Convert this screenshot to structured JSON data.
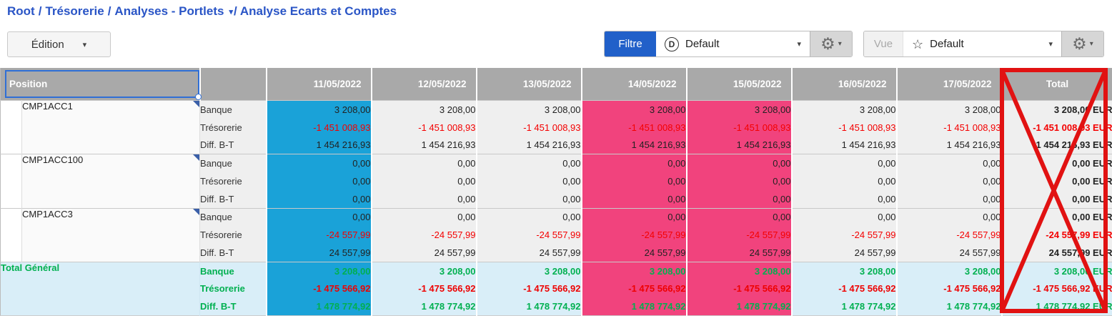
{
  "breadcrumb": {
    "separator": "/",
    "items": [
      "Root",
      "Trésorerie",
      "Analyses - Portlets",
      "Analyse Ecarts et Comptes"
    ]
  },
  "icons": {
    "caret_down": "▾",
    "gear": "⚙",
    "star_outline": "☆",
    "filter_badge_letter": "D"
  },
  "toolbar": {
    "edition_label": "Édition",
    "filtre_label": "Filtre",
    "filter_preset": "Default",
    "vue_label": "Vue",
    "view_preset": "Default"
  },
  "table": {
    "position_header": "Position",
    "date_columns": [
      "11/05/2022",
      "12/05/2022",
      "13/05/2022",
      "14/05/2022",
      "15/05/2022",
      "16/05/2022",
      "17/05/2022"
    ],
    "total_header": "Total",
    "row_labels": [
      "Banque",
      "Trésorerie",
      "Diff. B-T"
    ],
    "groups": [
      {
        "name": "CMP1ACC1",
        "rows": [
          {
            "label": "Banque",
            "values": [
              "3 208,00",
              "3 208,00",
              "3 208,00",
              "3 208,00",
              "3 208,00",
              "3 208,00",
              "3 208,00"
            ],
            "total": "3 208,00 EUR"
          },
          {
            "label": "Trésorerie",
            "values": [
              "-1 451 008,93",
              "-1 451 008,93",
              "-1 451 008,93",
              "-1 451 008,93",
              "-1 451 008,93",
              "-1 451 008,93",
              "-1 451 008,93"
            ],
            "total": "-1 451 008,93 EUR"
          },
          {
            "label": "Diff. B-T",
            "values": [
              "1 454 216,93",
              "1 454 216,93",
              "1 454 216,93",
              "1 454 216,93",
              "1 454 216,93",
              "1 454 216,93",
              "1 454 216,93"
            ],
            "total": "1 454 216,93 EUR"
          }
        ]
      },
      {
        "name": "CMP1ACC100",
        "rows": [
          {
            "label": "Banque",
            "values": [
              "0,00",
              "0,00",
              "0,00",
              "0,00",
              "0,00",
              "0,00",
              "0,00"
            ],
            "total": "0,00 EUR"
          },
          {
            "label": "Trésorerie",
            "values": [
              "0,00",
              "0,00",
              "0,00",
              "0,00",
              "0,00",
              "0,00",
              "0,00"
            ],
            "total": "0,00 EUR"
          },
          {
            "label": "Diff. B-T",
            "values": [
              "0,00",
              "0,00",
              "0,00",
              "0,00",
              "0,00",
              "0,00",
              "0,00"
            ],
            "total": "0,00 EUR"
          }
        ]
      },
      {
        "name": "CMP1ACC3",
        "rows": [
          {
            "label": "Banque",
            "values": [
              "0,00",
              "0,00",
              "0,00",
              "0,00",
              "0,00",
              "0,00",
              "0,00"
            ],
            "total": "0,00 EUR"
          },
          {
            "label": "Trésorerie",
            "values": [
              "-24 557,99",
              "-24 557,99",
              "-24 557,99",
              "-24 557,99",
              "-24 557,99",
              "-24 557,99",
              "-24 557,99"
            ],
            "total": "-24 557,99 EUR"
          },
          {
            "label": "Diff. B-T",
            "values": [
              "24 557,99",
              "24 557,99",
              "24 557,99",
              "24 557,99",
              "24 557,99",
              "24 557,99",
              "24 557,99"
            ],
            "total": "24 557,99 EUR"
          }
        ]
      }
    ],
    "grand_total": {
      "name": "Total Général",
      "rows": [
        {
          "label": "Banque",
          "values": [
            "3 208,00",
            "3 208,00",
            "3 208,00",
            "3 208,00",
            "3 208,00",
            "3 208,00",
            "3 208,00"
          ],
          "total": "3 208,00 EUR"
        },
        {
          "label": "Trésorerie",
          "values": [
            "-1 475 566,92",
            "-1 475 566,92",
            "-1 475 566,92",
            "-1 475 566,92",
            "-1 475 566,92",
            "-1 475 566,92",
            "-1 475 566,92"
          ],
          "total": "-1 475 566,92 EUR"
        },
        {
          "label": "Diff. B-T",
          "values": [
            "1 478 774,92",
            "1 478 774,92",
            "1 478 774,92",
            "1 478 774,92",
            "1 478 774,92",
            "1 478 774,92",
            "1 478 774,92"
          ],
          "total": "1 478 774,92 EUR"
        }
      ]
    },
    "column_highlights": {
      "blue_column": "11/05/2022",
      "pink_columns": [
        "14/05/2022",
        "15/05/2022"
      ]
    }
  },
  "colors": {
    "breadcrumb_blue": "#2a55c6",
    "filtre_button_blue": "#2160c9",
    "header_gray": "#a9a9a9",
    "highlight_blue": "#1aa2d8",
    "highlight_pink": "#f1437d",
    "grand_total_bg": "#d9eef8",
    "positive_green": "#00b050",
    "negative_red": "#f40000",
    "annotation_red": "#e11212"
  },
  "annotation": {
    "description": "red rectangle with X crossing out the Total column"
  }
}
